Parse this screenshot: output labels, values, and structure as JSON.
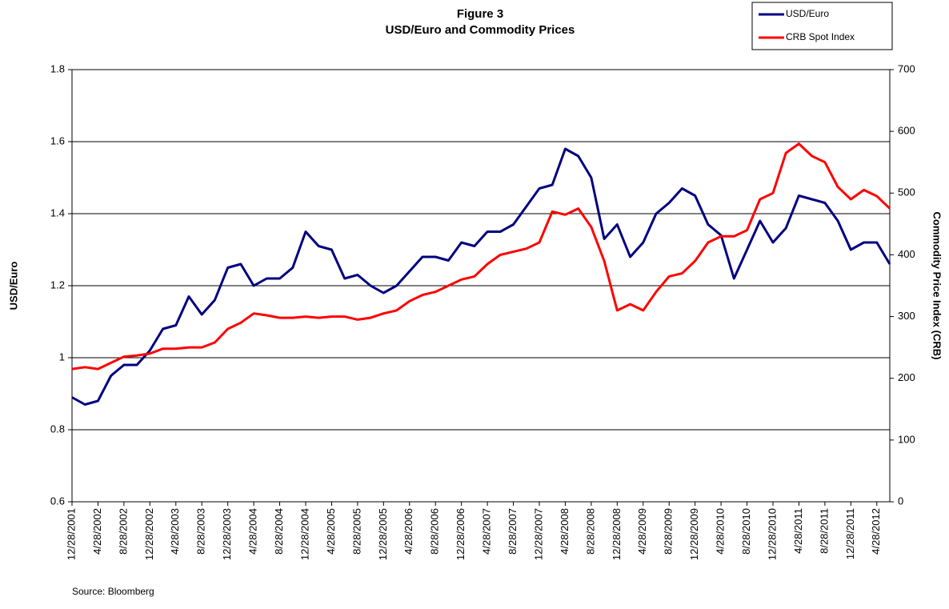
{
  "chart_data": {
    "type": "line",
    "title": "Figure 3",
    "subtitle": "USD/Euro and Commodity Prices",
    "y_label": "USD/Euro",
    "y2_label": "Commodity Price Index (CRB)",
    "source": "Source: Bloomberg",
    "legend": "upper right",
    "grid": true,
    "categories": [
      "12/28/2001",
      null,
      "4/28/2002",
      null,
      "8/28/2002",
      null,
      "12/28/2002",
      null,
      "4/28/2003",
      null,
      "8/28/2003",
      null,
      "12/28/2003",
      null,
      "4/28/2004",
      null,
      "8/28/2004",
      null,
      "12/28/2004",
      null,
      "4/28/2005",
      null,
      "8/28/2005",
      null,
      "12/28/2005",
      null,
      "4/28/2006",
      null,
      "8/28/2006",
      null,
      "12/28/2006",
      null,
      "4/28/2007",
      null,
      "8/28/2007",
      null,
      "12/28/2007",
      null,
      "4/28/2008",
      null,
      "8/28/2008",
      null,
      "12/28/2008",
      null,
      "4/28/2009",
      null,
      "8/28/2009",
      null,
      "12/28/2009",
      null,
      "4/28/2010",
      null,
      "8/28/2010",
      null,
      "12/28/2010",
      null,
      "4/28/2011",
      null,
      "8/28/2011",
      null,
      "12/28/2011",
      null,
      "4/28/2012",
      null
    ],
    "ylim": [
      0.6,
      1.8
    ],
    "yticks": [
      0.6,
      0.8,
      1,
      1.2,
      1.4,
      1.6,
      1.8
    ],
    "y2lim": [
      0,
      700
    ],
    "y2ticks": [
      0,
      100,
      200,
      300,
      400,
      500,
      600,
      700
    ],
    "series": [
      {
        "name": "USD/Euro",
        "color": "#000080",
        "axis": "y",
        "values": [
          0.89,
          0.87,
          0.88,
          0.95,
          0.98,
          0.98,
          1.02,
          1.08,
          1.09,
          1.17,
          1.12,
          1.16,
          1.25,
          1.26,
          1.2,
          1.22,
          1.22,
          1.25,
          1.35,
          1.31,
          1.3,
          1.22,
          1.23,
          1.2,
          1.18,
          1.2,
          1.24,
          1.28,
          1.28,
          1.27,
          1.32,
          1.31,
          1.35,
          1.35,
          1.37,
          1.42,
          1.47,
          1.48,
          1.58,
          1.56,
          1.5,
          1.33,
          1.37,
          1.28,
          1.32,
          1.4,
          1.43,
          1.47,
          1.45,
          1.37,
          1.34,
          1.22,
          1.3,
          1.38,
          1.32,
          1.36,
          1.45,
          1.44,
          1.43,
          1.38,
          1.3,
          1.32,
          1.32,
          1.26
        ]
      },
      {
        "name": "CRB Spot Index",
        "color": "#ff0000",
        "axis": "y2",
        "values": [
          215,
          218,
          215,
          225,
          235,
          237,
          240,
          248,
          248,
          250,
          250,
          258,
          280,
          290,
          305,
          302,
          298,
          298,
          300,
          298,
          300,
          300,
          295,
          298,
          305,
          310,
          325,
          335,
          340,
          350,
          360,
          365,
          385,
          400,
          405,
          410,
          420,
          470,
          465,
          475,
          445,
          390,
          310,
          320,
          310,
          340,
          365,
          370,
          390,
          420,
          430,
          430,
          440,
          490,
          500,
          565,
          580,
          560,
          550,
          510,
          490,
          505,
          495,
          475
        ]
      }
    ]
  }
}
